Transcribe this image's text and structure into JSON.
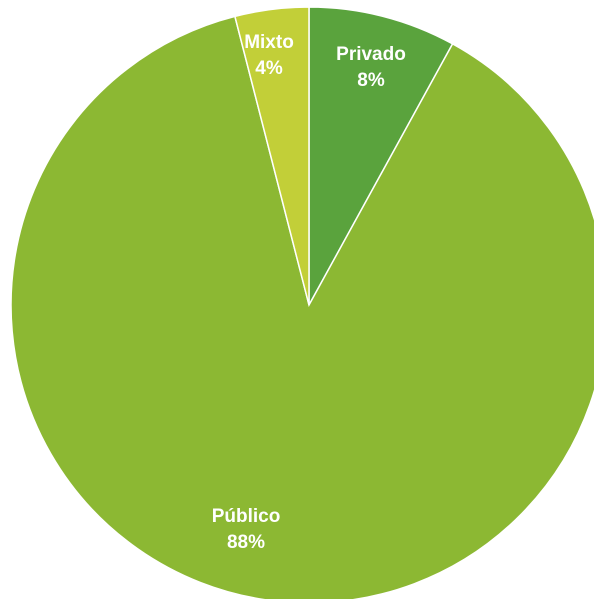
{
  "chart_data": {
    "type": "pie",
    "title": "",
    "slices": [
      {
        "label": "Privado",
        "value": 8,
        "value_label": "8%",
        "color": "#5aa33d"
      },
      {
        "label": "Público",
        "value": 88,
        "value_label": "88%",
        "color": "#8cb833"
      },
      {
        "label": "Mixto",
        "value": 4,
        "value_label": "4%",
        "color": "#c2cf38"
      }
    ],
    "start_angle_deg": 0,
    "direction": "clockwise",
    "legend": "none",
    "labels_inside": true
  }
}
